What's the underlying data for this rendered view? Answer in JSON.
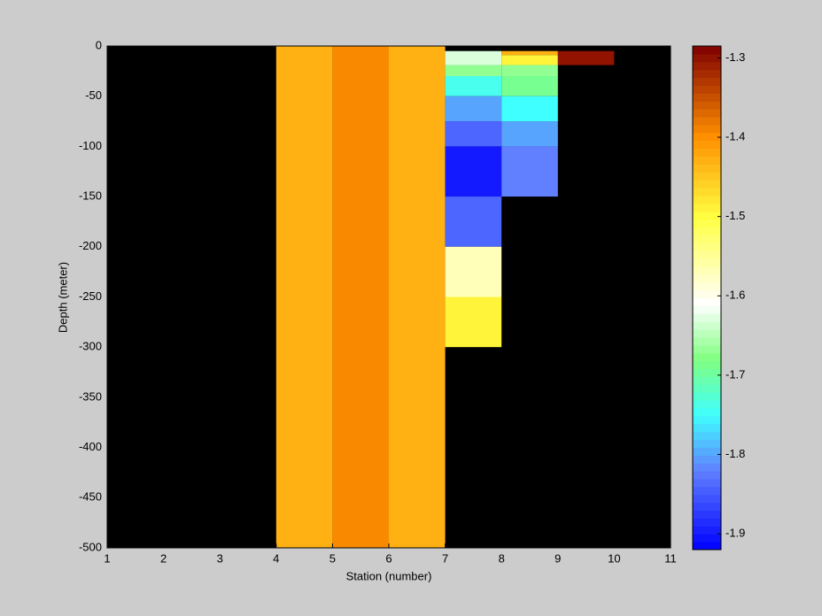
{
  "chart_data": {
    "type": "heatmap",
    "x_label": "Station (number)",
    "y_label": "Depth (meter)",
    "xlim": [
      1,
      11
    ],
    "xticks": [
      1,
      2,
      3,
      4,
      5,
      6,
      7,
      8,
      9,
      10,
      11
    ],
    "ylim": [
      -500,
      0
    ],
    "yticks": [
      0,
      -50,
      -100,
      -150,
      -200,
      -250,
      -300,
      -350,
      -400,
      -450,
      -500
    ],
    "clim": [
      -1.92,
      -1.285
    ],
    "cticks": [
      -1.3,
      -1.4,
      -1.5,
      -1.6,
      -1.7,
      -1.8,
      -1.9
    ],
    "background": "#000000",
    "colormap": [
      [
        -1.92,
        "#0000ff"
      ],
      [
        -1.82,
        "#6080ff"
      ],
      [
        -1.75,
        "#40ffff"
      ],
      [
        -1.68,
        "#80ff80"
      ],
      [
        -1.61,
        "#ffffff"
      ],
      [
        -1.5,
        "#ffff40"
      ],
      [
        -1.4,
        "#ff9000"
      ],
      [
        -1.285,
        "#800000"
      ]
    ],
    "cells": [
      {
        "x": [
          4,
          5
        ],
        "y": [
          -500,
          0
        ],
        "value": -1.43
      },
      {
        "x": [
          5,
          6
        ],
        "y": [
          -500,
          0
        ],
        "value": -1.395
      },
      {
        "x": [
          6,
          7
        ],
        "y": [
          -500,
          0
        ],
        "value": -1.43
      },
      {
        "x": [
          7,
          8
        ],
        "y": [
          -19,
          -5
        ],
        "value": -1.63
      },
      {
        "x": [
          7,
          8
        ],
        "y": [
          -30,
          -19
        ],
        "value": -1.67
      },
      {
        "x": [
          7,
          8
        ],
        "y": [
          -50,
          -30
        ],
        "value": -1.74
      },
      {
        "x": [
          7,
          8
        ],
        "y": [
          -75,
          -50
        ],
        "value": -1.8
      },
      {
        "x": [
          7,
          8
        ],
        "y": [
          -100,
          -75
        ],
        "value": -1.84
      },
      {
        "x": [
          7,
          8
        ],
        "y": [
          -150,
          -100
        ],
        "value": -1.9
      },
      {
        "x": [
          7,
          8
        ],
        "y": [
          -200,
          -150
        ],
        "value": -1.84
      },
      {
        "x": [
          7,
          8
        ],
        "y": [
          -250,
          -200
        ],
        "value": -1.57
      },
      {
        "x": [
          7,
          8
        ],
        "y": [
          -300,
          -250
        ],
        "value": -1.49
      },
      {
        "x": [
          8,
          9
        ],
        "y": [
          -9,
          -5
        ],
        "value": -1.43
      },
      {
        "x": [
          8,
          9
        ],
        "y": [
          -19,
          -9
        ],
        "value": -1.49
      },
      {
        "x": [
          8,
          9
        ],
        "y": [
          -30,
          -19
        ],
        "value": -1.67
      },
      {
        "x": [
          8,
          9
        ],
        "y": [
          -50,
          -30
        ],
        "value": -1.69
      },
      {
        "x": [
          8,
          9
        ],
        "y": [
          -75,
          -50
        ],
        "value": -1.75
      },
      {
        "x": [
          8,
          9
        ],
        "y": [
          -100,
          -75
        ],
        "value": -1.8
      },
      {
        "x": [
          8,
          9
        ],
        "y": [
          -150,
          -100
        ],
        "value": -1.82
      },
      {
        "x": [
          9,
          10
        ],
        "y": [
          -19,
          -5
        ],
        "value": -1.3
      }
    ]
  }
}
